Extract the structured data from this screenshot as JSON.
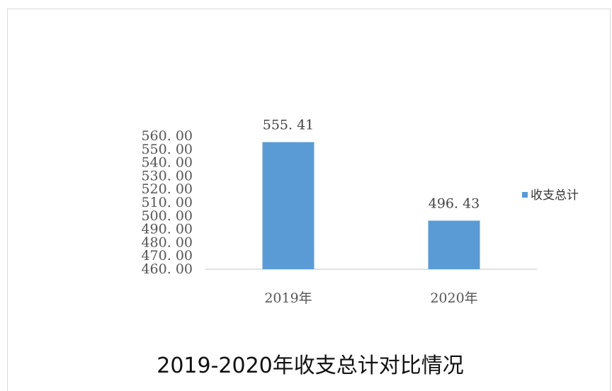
{
  "chart_data": {
    "type": "bar",
    "title": "2019-2020年收支总计对比情况",
    "categories": [
      "2019年",
      "2020年"
    ],
    "series": [
      {
        "name": "收支总计",
        "values": [
          555.41,
          496.43
        ],
        "data_labels": [
          "555. 41",
          "496. 43"
        ],
        "color": "#5b9bd5"
      }
    ],
    "ylim": [
      460,
      560
    ],
    "yticks": [
      "560. 00",
      "550. 00",
      "540. 00",
      "530. 00",
      "520. 00",
      "510. 00",
      "500. 00",
      "490. 00",
      "480. 00",
      "470. 00",
      "460. 00"
    ],
    "xlabel": "",
    "ylabel": "",
    "grid": false,
    "legend": "right",
    "axis_color": "#d9d9d9"
  }
}
